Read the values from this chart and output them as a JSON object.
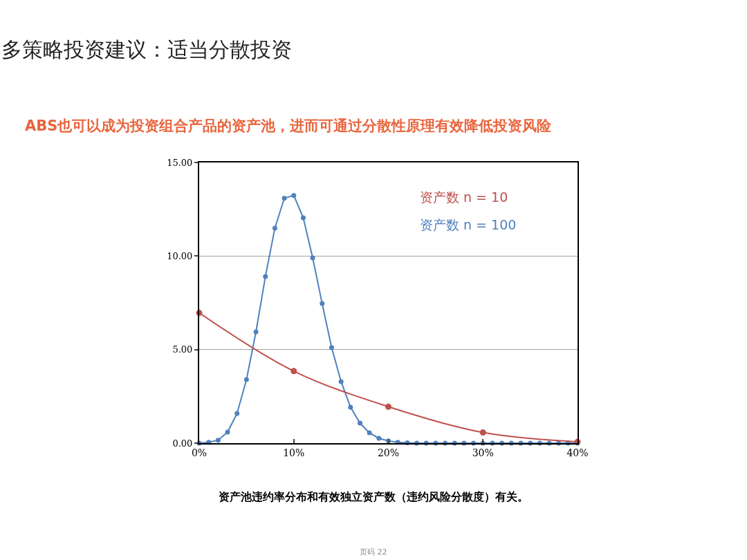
{
  "chart_data": {
    "type": "line",
    "title": "多策略投资建议：适当分散投资",
    "subtitle": "ABS也可以成为投资组合产品的资产池，进而可通过分散性原理有效降低投资风险",
    "annotations": [
      "资产池违约率分布和有效独立资产数（违约风险分散度）有关。",
      "页码 22"
    ],
    "series": [
      {
        "name": "资产数 n = 10",
        "color": "#c0504d",
        "x": [
          0,
          10,
          20,
          30,
          40
        ],
        "values": [
          6.96,
          3.85,
          1.95,
          0.57,
          0.07
        ]
      },
      {
        "name": "资产数 n = 100",
        "color": "#4f81bd",
        "x": [
          0,
          1,
          2,
          3,
          4,
          5,
          6,
          7,
          8,
          9,
          10,
          11,
          12,
          13,
          14,
          15,
          16,
          17,
          18,
          19,
          20,
          21,
          22,
          23,
          24,
          25,
          26,
          27,
          28,
          29,
          30,
          31,
          32,
          33,
          34,
          35,
          36,
          37,
          38,
          39,
          40
        ],
        "values": [
          0,
          0.05,
          0.16,
          0.59,
          1.59,
          3.4,
          5.95,
          8.9,
          11.49,
          13.09,
          13.24,
          12.04,
          9.9,
          7.46,
          5.11,
          3.29,
          1.92,
          1.07,
          0.55,
          0.26,
          0.12,
          0.05,
          0.02,
          0,
          0,
          0,
          0,
          0,
          0,
          0,
          0,
          0,
          0,
          0,
          0,
          0,
          0,
          0,
          0,
          0,
          0
        ]
      }
    ],
    "xlim": [
      0,
      40
    ],
    "xticks": [
      {
        "value": 0,
        "label": "0%"
      },
      {
        "value": 10,
        "label": "10%"
      },
      {
        "value": 20,
        "label": "20%"
      },
      {
        "value": 30,
        "label": "30%"
      },
      {
        "value": 40,
        "label": "40%"
      }
    ],
    "ylim": [
      0,
      15
    ],
    "yticks": [
      {
        "value": 0,
        "label": "0.00"
      },
      {
        "value": 5,
        "label": "5.00"
      },
      {
        "value": 10,
        "label": "10.00"
      },
      {
        "value": 15,
        "label": "15.00"
      }
    ],
    "grid": "y",
    "marker": "circle",
    "line_style": "solid",
    "legend": false
  }
}
